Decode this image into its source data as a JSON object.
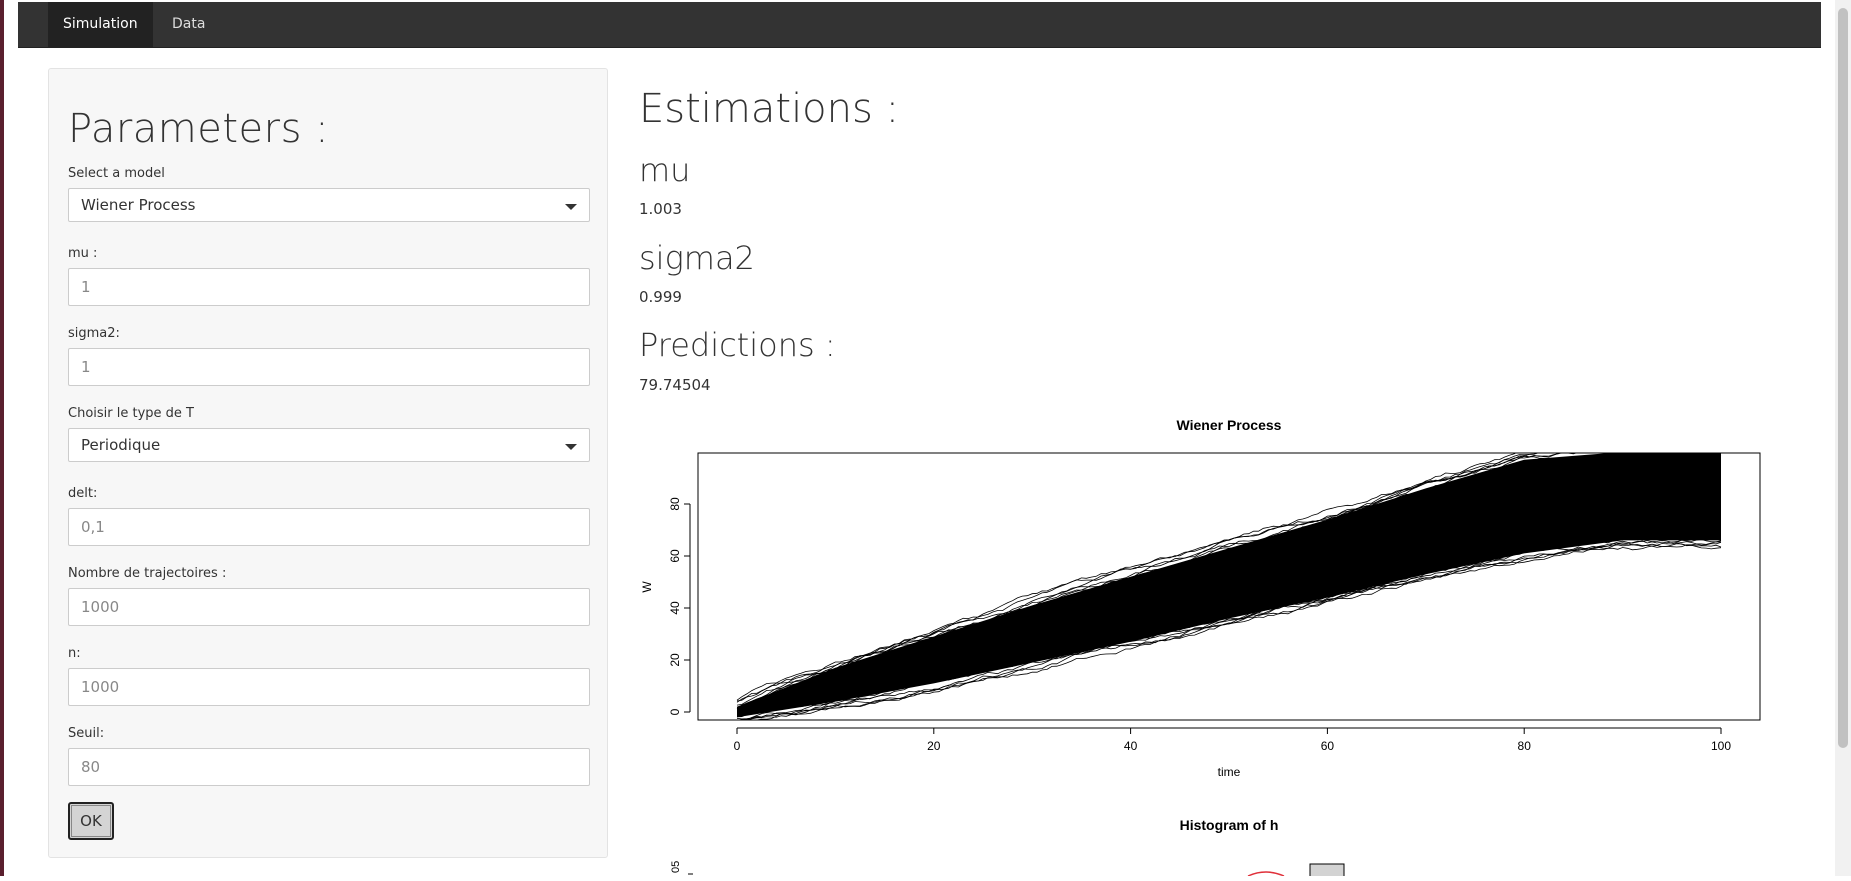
{
  "nav": {
    "tabs": [
      {
        "label": "Simulation",
        "active": true
      },
      {
        "label": "Data",
        "active": false
      }
    ]
  },
  "sidebar": {
    "title": "Parameters :",
    "model_label": "Select a model",
    "model_value": "Wiener Process",
    "mu_label": "mu :",
    "mu_value": "1",
    "sigma2_label": "sigma2:",
    "sigma2_value": "1",
    "ttype_label": "Choisir le type de T",
    "ttype_value": "Periodique",
    "delt_label": "delt:",
    "delt_value": "0,1",
    "ntraj_label": "Nombre de trajectoires :",
    "ntraj_value": "1000",
    "n_label": "n:",
    "n_value": "1000",
    "seuil_label": "Seuil:",
    "seuil_value": "80",
    "ok_label": "OK"
  },
  "main": {
    "estimations_title": "Estimations :",
    "mu_heading": "mu",
    "mu_estimate": "1.003",
    "sigma2_heading": "sigma2",
    "sigma2_estimate": "0.999",
    "predictions_title": "Predictions :",
    "prediction_value": "79.74504"
  },
  "chart_data": [
    {
      "type": "line",
      "title": "Wiener Process",
      "xlabel": "time",
      "ylabel": "W",
      "xlim": [
        0,
        100
      ],
      "ylim": [
        0,
        100
      ],
      "x_ticks": [
        0,
        20,
        40,
        60,
        80,
        100
      ],
      "y_ticks": [
        0,
        20,
        40,
        60,
        80
      ],
      "series_band": {
        "x": [
          0,
          10,
          20,
          30,
          40,
          50,
          60,
          70,
          80,
          90,
          100
        ],
        "mean": [
          0,
          10,
          20,
          30,
          40,
          50,
          60,
          70,
          80,
          90,
          100
        ],
        "upper": [
          2,
          17,
          29,
          41,
          52,
          63,
          74,
          86,
          97,
          100,
          100
        ],
        "lower": [
          -2,
          4,
          11,
          19,
          27,
          36,
          44,
          53,
          61,
          66,
          66
        ]
      },
      "grid": false,
      "color": "#000000"
    },
    {
      "type": "bar",
      "title": "Histogram of h",
      "ylabel_tick_partial": "05"
    }
  ]
}
